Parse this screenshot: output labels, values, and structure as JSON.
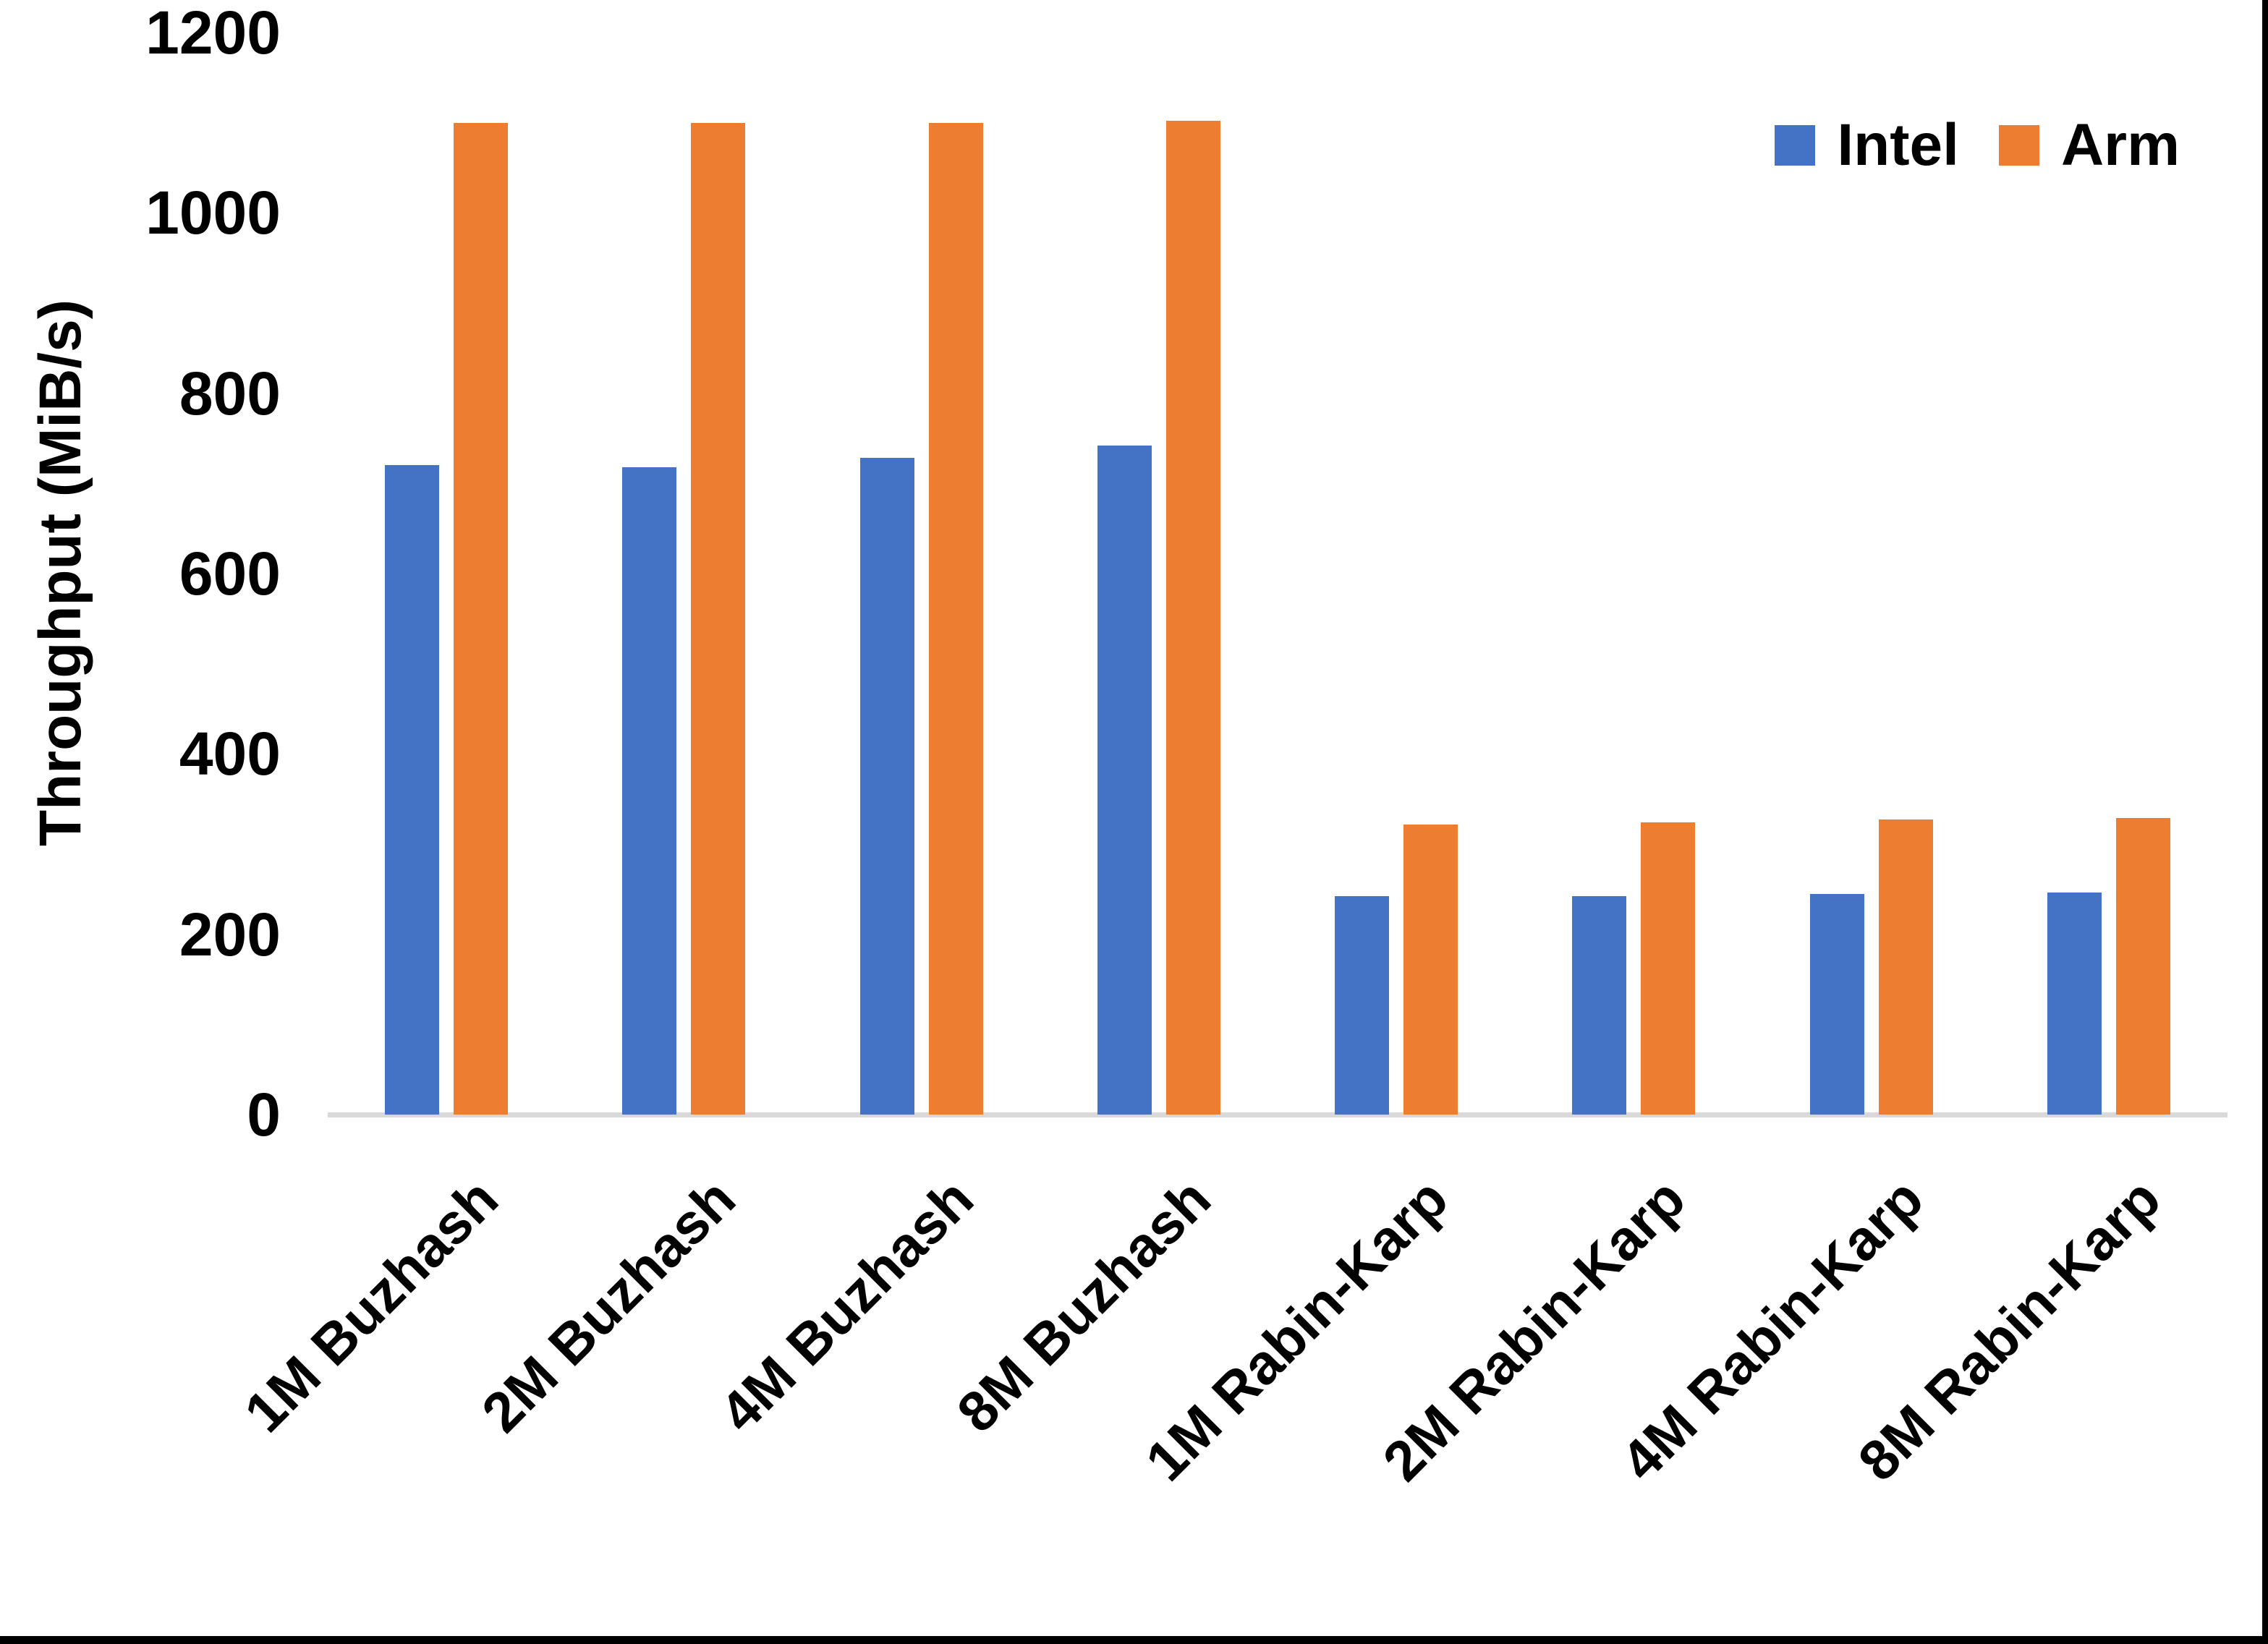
{
  "figure": {
    "background": "#FFFFFF",
    "edge_border_color": "#000000"
  },
  "chart_data": {
    "type": "bar",
    "title": "",
    "xlabel": "",
    "ylabel": "Throughput (MiB/s)",
    "ylim": [
      0,
      1200
    ],
    "yticks": [
      0,
      200,
      400,
      600,
      800,
      1000,
      1200
    ],
    "grid": false,
    "legend_position": "top-right",
    "axis_line_color": "#D9D9D9",
    "categories": [
      "1M Buzhash",
      "2M Buzhash",
      "4M Buzhash",
      "8M Buzhash",
      "1M Rabin-Karp",
      "2M Rabin-Karp",
      "4M Rabin-Karp",
      "8M Rabin-Karp"
    ],
    "series": [
      {
        "name": "Intel",
        "color": "#4472C4",
        "values": [
          720,
          718,
          728,
          742,
          242,
          242,
          245,
          246
        ]
      },
      {
        "name": "Arm",
        "color": "#ED7D31",
        "values": [
          1100,
          1100,
          1100,
          1102,
          322,
          324,
          327,
          329
        ]
      }
    ]
  }
}
